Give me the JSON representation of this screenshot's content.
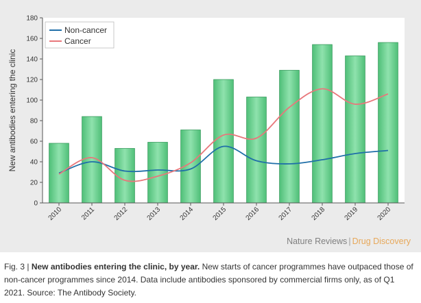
{
  "chart_data": {
    "type": "bar",
    "ylabel": "New antibodies entering the clinic",
    "ylim": [
      0,
      180
    ],
    "yticks": [
      0,
      20,
      40,
      60,
      80,
      100,
      120,
      140,
      160,
      180
    ],
    "categories": [
      "2010",
      "2011",
      "2012",
      "2013",
      "2014",
      "2015",
      "2016",
      "2017",
      "2018",
      "2019",
      "2020"
    ],
    "bars": {
      "values": [
        58,
        84,
        53,
        59,
        71,
        120,
        103,
        129,
        154,
        143,
        156
      ],
      "color": "#79d69a"
    },
    "series": [
      {
        "name": "Non-cancer",
        "type": "line",
        "color": "#1f6fa8",
        "values": [
          29,
          40,
          31,
          32,
          33,
          55,
          41,
          38,
          42,
          48,
          51
        ]
      },
      {
        "name": "Cancer",
        "type": "line",
        "color": "#e8777b",
        "values": [
          28,
          44,
          22,
          26,
          39,
          66,
          63,
          93,
          111,
          96,
          106
        ]
      }
    ],
    "legend": "top-left",
    "grid": false
  },
  "credit": {
    "source": "Nature Reviews",
    "separator": "|",
    "journal": "Drug Discovery"
  },
  "caption": {
    "label": "Fig. 3 |",
    "title": "New antibodies entering the clinic, by year.",
    "text": "New starts of cancer programmes have outpaced those of non-cancer programmes since 2014. Data include antibodies sponsored by commercial firms only, as of Q1 2021. Source: The Antibody Society."
  }
}
